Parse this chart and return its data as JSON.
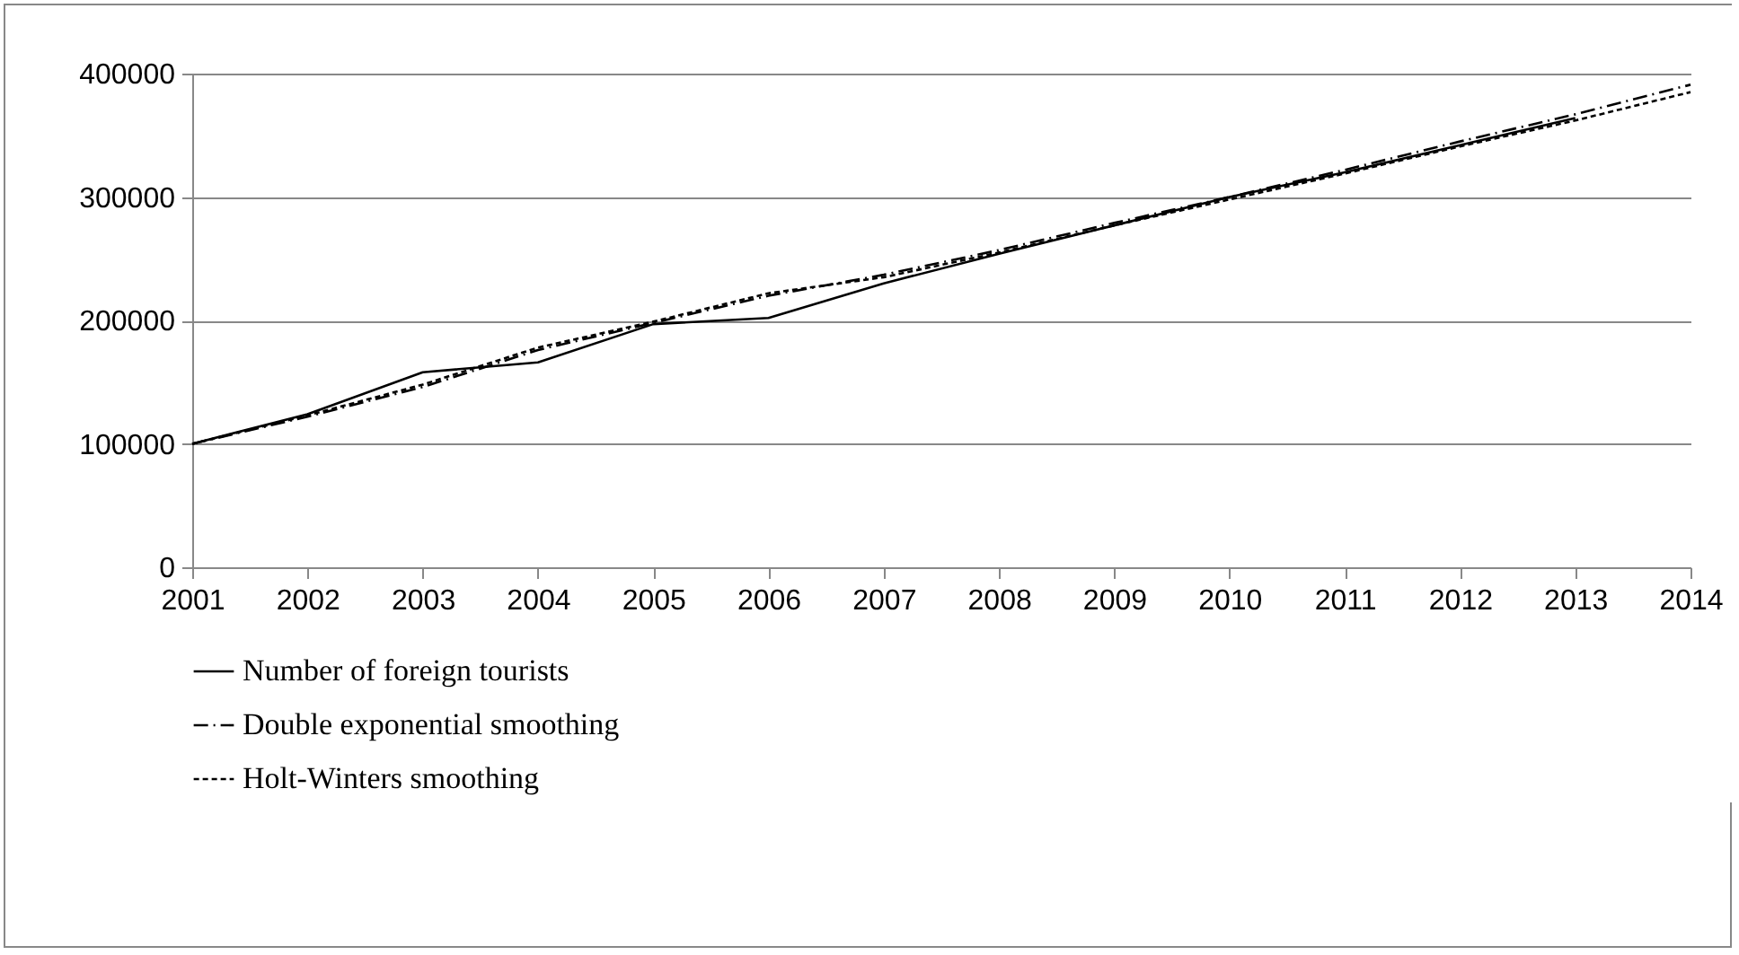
{
  "chart_data": {
    "type": "line",
    "categories": [
      "2001",
      "2002",
      "2003",
      "2004",
      "2005",
      "2006",
      "2007",
      "2008",
      "2009",
      "2010",
      "2011",
      "2012",
      "2013",
      "2014"
    ],
    "series": [
      {
        "name": "Number of foreign tourists",
        "color": "#000000",
        "line_style": "solid",
        "values": [
          100000,
          124000,
          158000,
          166000,
          197000,
          202000,
          230000,
          254000,
          277000,
          300000,
          320000,
          342000,
          364000,
          null
        ]
      },
      {
        "name": "Double exponential smoothing",
        "color": "#000000",
        "line_style": "dashdot",
        "values": [
          100000,
          122000,
          146000,
          176000,
          198000,
          220000,
          237000,
          257000,
          279000,
          300000,
          322000,
          345000,
          367000,
          391000
        ]
      },
      {
        "name": "Holt-Winters smoothing",
        "color": "#000000",
        "line_style": "dashed",
        "values": [
          100000,
          123000,
          148000,
          178000,
          199000,
          222000,
          235000,
          255000,
          277000,
          298000,
          319000,
          341000,
          362000,
          385000
        ]
      }
    ],
    "ylim": [
      0,
      400000
    ],
    "yticks": [
      0,
      100000,
      200000,
      300000,
      400000
    ],
    "grid": "y",
    "legend": "bottom"
  }
}
